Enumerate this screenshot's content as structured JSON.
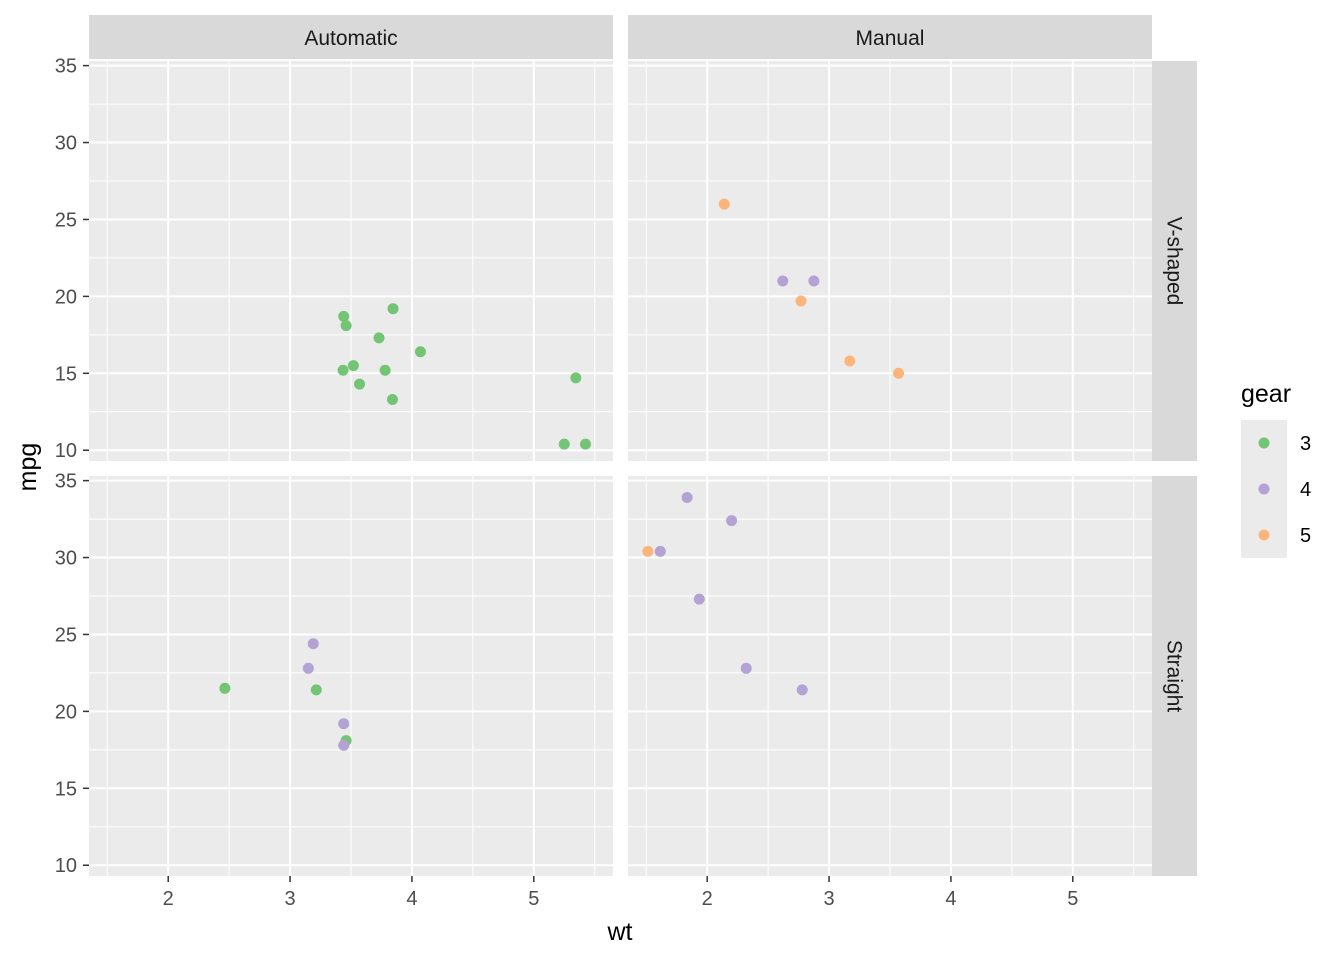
{
  "chart_data": {
    "type": "scatter",
    "xlabel": "wt",
    "ylabel": "mpg",
    "xlim": [
      1.35,
      5.65
    ],
    "ylim": [
      9.3,
      35.3
    ],
    "x_ticks": [
      2,
      3,
      4,
      5
    ],
    "y_ticks": [
      10,
      15,
      20,
      25,
      30,
      35
    ],
    "grid": true,
    "facet_cols": [
      "Automatic",
      "Manual"
    ],
    "facet_rows": [
      "V-shaped",
      "Straight"
    ],
    "legend": {
      "title": "gear",
      "position": "right",
      "entries": [
        {
          "label": "3",
          "color": "#74c476"
        },
        {
          "label": "4",
          "color": "#b3a2d4"
        },
        {
          "label": "5",
          "color": "#fdb47a"
        }
      ]
    },
    "colors": {
      "3": "#74c476",
      "4": "#b3a2d4",
      "5": "#fdb47a"
    },
    "panels": [
      {
        "col": "Automatic",
        "row": "V-shaped",
        "points": [
          {
            "x": 3.44,
            "y": 18.7,
            "gear": "3"
          },
          {
            "x": 3.46,
            "y": 18.1,
            "gear": "3"
          },
          {
            "x": 3.57,
            "y": 14.3,
            "gear": "3"
          },
          {
            "x": 4.07,
            "y": 16.4,
            "gear": "3"
          },
          {
            "x": 3.73,
            "y": 17.3,
            "gear": "3"
          },
          {
            "x": 3.78,
            "y": 15.2,
            "gear": "3"
          },
          {
            "x": 5.25,
            "y": 10.4,
            "gear": "3"
          },
          {
            "x": 5.424,
            "y": 10.4,
            "gear": "3"
          },
          {
            "x": 5.345,
            "y": 14.7,
            "gear": "3"
          },
          {
            "x": 3.52,
            "y": 15.5,
            "gear": "3"
          },
          {
            "x": 3.435,
            "y": 15.2,
            "gear": "3"
          },
          {
            "x": 3.84,
            "y": 13.3,
            "gear": "3"
          },
          {
            "x": 3.845,
            "y": 19.2,
            "gear": "3"
          }
        ]
      },
      {
        "col": "Manual",
        "row": "V-shaped",
        "points": [
          {
            "x": 2.62,
            "y": 21.0,
            "gear": "4"
          },
          {
            "x": 2.875,
            "y": 21.0,
            "gear": "4"
          },
          {
            "x": 2.14,
            "y": 26.0,
            "gear": "5"
          },
          {
            "x": 3.17,
            "y": 15.8,
            "gear": "5"
          },
          {
            "x": 2.77,
            "y": 19.7,
            "gear": "5"
          },
          {
            "x": 3.57,
            "y": 15.0,
            "gear": "5"
          }
        ]
      },
      {
        "col": "Automatic",
        "row": "Straight",
        "points": [
          {
            "x": 3.215,
            "y": 21.4,
            "gear": "3"
          },
          {
            "x": 3.46,
            "y": 18.1,
            "gear": "3"
          },
          {
            "x": 2.465,
            "y": 21.5,
            "gear": "3"
          },
          {
            "x": 3.19,
            "y": 24.4,
            "gear": "4"
          },
          {
            "x": 3.15,
            "y": 22.8,
            "gear": "4"
          },
          {
            "x": 3.44,
            "y": 19.2,
            "gear": "4"
          },
          {
            "x": 3.44,
            "y": 17.8,
            "gear": "4"
          }
        ]
      },
      {
        "col": "Manual",
        "row": "Straight",
        "points": [
          {
            "x": 2.32,
            "y": 22.8,
            "gear": "4"
          },
          {
            "x": 2.2,
            "y": 32.4,
            "gear": "4"
          },
          {
            "x": 1.615,
            "y": 30.4,
            "gear": "4"
          },
          {
            "x": 1.835,
            "y": 33.9,
            "gear": "4"
          },
          {
            "x": 1.935,
            "y": 27.3,
            "gear": "4"
          },
          {
            "x": 2.78,
            "y": 21.4,
            "gear": "4"
          },
          {
            "x": 1.513,
            "y": 30.4,
            "gear": "5"
          }
        ]
      }
    ]
  }
}
